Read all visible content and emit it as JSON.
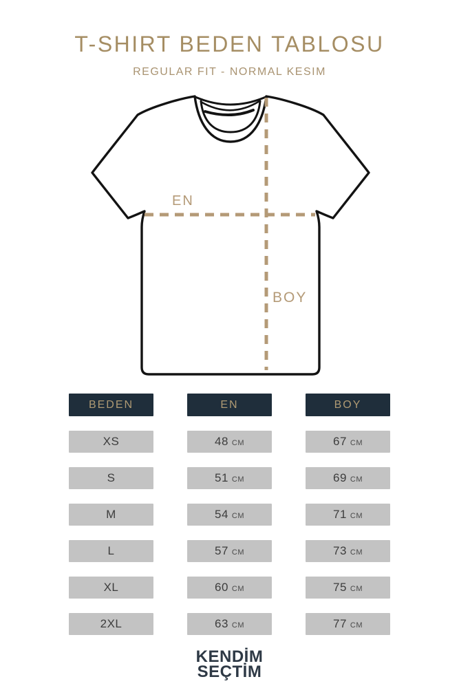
{
  "header": {
    "title": "T-SHIRT BEDEN TABLOSU",
    "subtitle": "REGULAR FIT - NORMAL KESIM"
  },
  "diagram": {
    "width_label": "EN",
    "height_label": "BOY"
  },
  "table": {
    "columns": [
      "BEDEN",
      "EN",
      "BOY"
    ],
    "unit": "CM",
    "rows": [
      {
        "beden": "XS",
        "en": "48",
        "boy": "67"
      },
      {
        "beden": "S",
        "en": "51",
        "boy": "69"
      },
      {
        "beden": "M",
        "en": "54",
        "boy": "71"
      },
      {
        "beden": "L",
        "en": "57",
        "boy": "73"
      },
      {
        "beden": "XL",
        "en": "60",
        "boy": "75"
      },
      {
        "beden": "2XL",
        "en": "63",
        "boy": "77"
      }
    ]
  },
  "footer": {
    "logo_line1": "KENDİM",
    "logo_line2": "SEÇTİM"
  },
  "colors": {
    "gold_title": "#a58d63",
    "tan_dash": "#b49a77",
    "header_navy": "#1f2e3b",
    "header_text_gold": "#af9a73",
    "cell_gray": "#c3c3c3",
    "cell_text": "#3d3d3d",
    "logo_navy": "#2e3945"
  }
}
